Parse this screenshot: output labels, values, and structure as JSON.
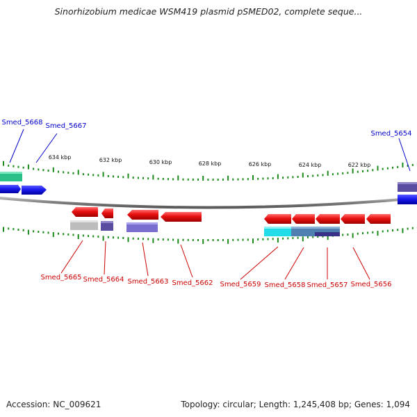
{
  "header": {
    "title": "Sinorhizobium medicae WSM419 plasmid pSMED02, complete seque..."
  },
  "ruler": {
    "ticks": [
      "634 kbp",
      "632 kbp",
      "630 kbp",
      "628 kbp",
      "626 kbp",
      "624 kbp",
      "622 kbp"
    ]
  },
  "genes_forward": [
    {
      "name": "Smed_5668",
      "color": "#0000cc"
    },
    {
      "name": "Smed_5667",
      "color": "#0000cc"
    },
    {
      "name": "Smed_5654",
      "color": "#0000cc"
    }
  ],
  "genes_reverse": [
    {
      "name": "Smed_5665",
      "color": "#cc0000"
    },
    {
      "name": "Smed_5664",
      "color": "#cc0000"
    },
    {
      "name": "Smed_5663",
      "color": "#cc0000"
    },
    {
      "name": "Smed_5662",
      "color": "#cc0000"
    },
    {
      "name": "Smed_5659",
      "color": "#cc0000"
    },
    {
      "name": "Smed_5658",
      "color": "#cc0000"
    },
    {
      "name": "Smed_5657",
      "color": "#cc0000"
    },
    {
      "name": "Smed_5656",
      "color": "#cc0000"
    }
  ],
  "colors": {
    "forward_gene": "#1a1aee",
    "reverse_gene": "#e81010",
    "cog_teal": "#2bbf8a",
    "cog_purple": "#5a4c9e",
    "cog_lavender": "#7a6fd0",
    "cog_gray": "#bcbcbc",
    "cog_cyan": "#22dde8",
    "cog_steel": "#4f7fb0",
    "backbone": "#8a8a8a",
    "tick": "#1a8a1a"
  },
  "footer": {
    "accession": "Accession: NC_009621",
    "summary": "Topology: circular; Length: 1,245,408 bp; Genes: 1,094"
  }
}
